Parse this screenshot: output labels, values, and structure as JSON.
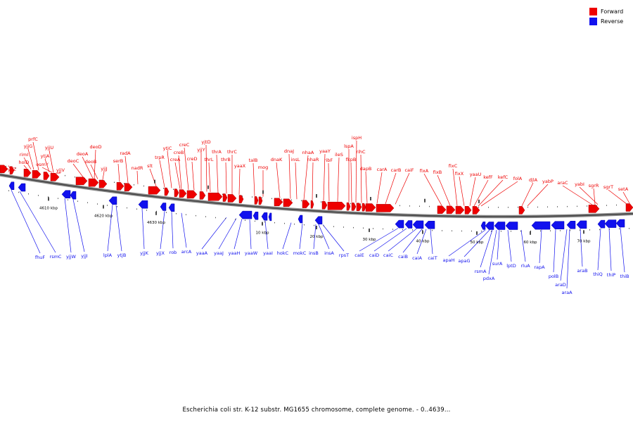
{
  "legend": {
    "forward": {
      "label": "Forward",
      "color": "#ee0000"
    },
    "reverse": {
      "label": "Reverse",
      "color": "#1111ee"
    }
  },
  "caption": "Escherichia coli str. K-12 substr. MG1655 chromosome, complete genome. - 0..4639...",
  "scale_labels": [
    "4610 kbp",
    "4620 kbp",
    "4630 kbp",
    "10 kbp",
    "20 kbp",
    "30 kbp",
    "40 kbp",
    "50 kbp",
    "60 kbp",
    "70 kbp"
  ],
  "forward_genes": [
    "yjjZ",
    "holD",
    "rimI",
    "yjjG",
    "prfC",
    "osmY",
    "ytjA",
    "yjjU",
    "yjjV",
    "deoC",
    "deoA",
    "deoB",
    "deoD",
    "yjjJ",
    "serB",
    "radA",
    "nadR",
    "slt",
    "trpR",
    "ytjC",
    "creA",
    "creB",
    "creC",
    "creD",
    "yjjY",
    "thrL",
    "yjtD",
    "thrA",
    "thrB",
    "thrC",
    "yaaX",
    "talB",
    "mog",
    "dnaK",
    "dnaJ",
    "insL",
    "nhaA",
    "nhaR",
    "yaaY",
    "ribF",
    "ileS",
    "lspA",
    "fkpB",
    "ispH",
    "rihC",
    "dapB",
    "carA",
    "carB",
    "caiF",
    "fixA",
    "fixB",
    "fixC",
    "fixX",
    "yaaU",
    "kefF",
    "kefC",
    "folA",
    "djlA",
    "yabP",
    "araC",
    "yabI",
    "sgrR",
    "sgrT",
    "setA"
  ],
  "reverse_genes": [
    "fhuF",
    "rsmC",
    "yjjW",
    "yjjI",
    "lplA",
    "ytjB",
    "yjjK",
    "yjjX",
    "rob",
    "arcA",
    "yaaA",
    "yaaJ",
    "yaaH",
    "yaaW",
    "yaaI",
    "hokC",
    "mokC",
    "insB",
    "insA",
    "rpsT",
    "caiE",
    "caiD",
    "caiC",
    "caiB",
    "caiA",
    "caiT",
    "apaH",
    "apaG",
    "rsmA",
    "pdxA",
    "surA",
    "lptD",
    "rluA",
    "rapA",
    "polB",
    "araD",
    "araA",
    "araB",
    "thiQ",
    "thiP",
    "thiB"
  ]
}
